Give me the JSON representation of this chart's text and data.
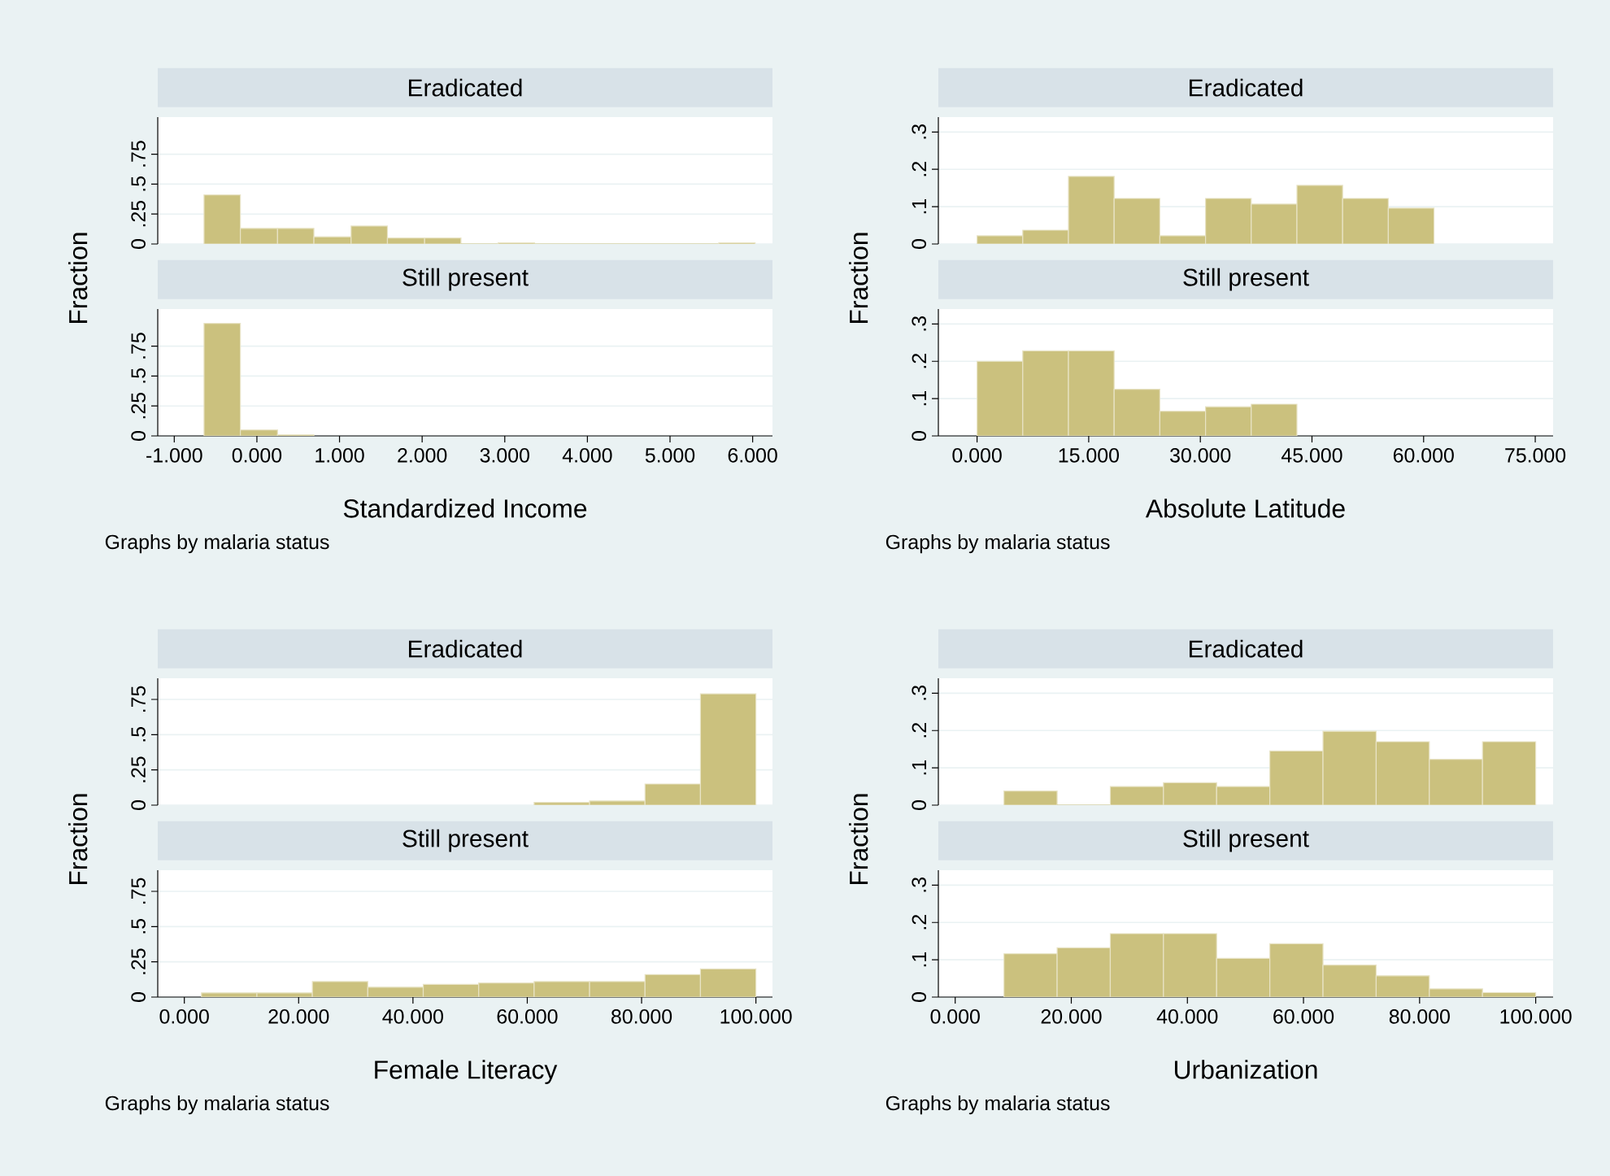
{
  "chart_data": [
    {
      "type": "histogram",
      "title": "Eradicated",
      "ylabel": "Fraction",
      "tick_labels": "y",
      "grid": "y",
      "color": "#cbc17e",
      "bins": [
        -0.64,
        -0.2,
        0.25,
        0.69,
        1.14,
        1.58,
        2.03,
        2.47,
        2.92,
        3.36,
        5.59,
        6.03
      ],
      "values": [
        0.41,
        0.13,
        0.13,
        0.06,
        0.15,
        0.05,
        0.05,
        0,
        0.01,
        0,
        0.01
      ],
      "xlim": [
        -1.2,
        6.24
      ],
      "ylim": [
        0,
        1.06
      ],
      "yticks": [
        0,
        {
          "value": 0.25,
          "label": ".25"
        },
        {
          "value": 0.5,
          "label": ".5"
        },
        {
          "value": 0.75,
          "label": ".75"
        }
      ]
    },
    {
      "type": "histogram",
      "title": "Still present",
      "xlabel": "Standardized Income",
      "grid": "y",
      "color": "#cbc17e",
      "annotations": [
        "Graphs by malaria status"
      ],
      "bins": [
        -0.64,
        -0.2,
        0.25,
        0.69
      ],
      "values": [
        0.94,
        0.05,
        0.01
      ],
      "xlim": [
        -1.2,
        6.24
      ],
      "ylim": [
        0,
        1.06
      ],
      "xticks": [
        {
          "value": -1,
          "label": "-1.000"
        },
        {
          "value": 0,
          "label": "0.000"
        },
        {
          "value": 1,
          "label": "1.000"
        },
        {
          "value": 2,
          "label": "2.000"
        },
        {
          "value": 3,
          "label": "3.000"
        },
        {
          "value": 4,
          "label": "4.000"
        },
        {
          "value": 5,
          "label": "5.000"
        },
        {
          "value": 6,
          "label": "6.000"
        }
      ],
      "yticks": [
        0,
        {
          "value": 0.25,
          "label": ".25"
        },
        {
          "value": 0.5,
          "label": ".5"
        },
        {
          "value": 0.75,
          "label": ".75"
        }
      ]
    },
    {
      "type": "histogram",
      "title": "Eradicated",
      "ylabel": "Fraction",
      "tick_labels": "y",
      "grid": "y",
      "color": "#cbc17e",
      "bins": [
        0,
        6.14,
        12.28,
        18.42,
        24.56,
        30.7,
        36.84,
        42.98,
        49.12,
        55.26,
        61.4
      ],
      "values": [
        0.022,
        0.037,
        0.181,
        0.122,
        0.022,
        0.122,
        0.107,
        0.157,
        0.122,
        0.096
      ],
      "xlim": [
        -5.2,
        77.4
      ],
      "ylim": [
        0,
        0.34
      ],
      "yticks": [
        0,
        {
          "value": 0.1,
          "label": ".1"
        },
        {
          "value": 0.2,
          "label": ".2"
        },
        {
          "value": 0.3,
          "label": ".3"
        }
      ]
    },
    {
      "type": "histogram",
      "title": "Still present",
      "xlabel": "Absolute Latitude",
      "grid": "y",
      "color": "#cbc17e",
      "annotations": [
        "Graphs by malaria status"
      ],
      "bins": [
        0,
        6.14,
        12.28,
        18.42,
        24.56,
        30.7,
        36.84,
        42.98
      ],
      "values": [
        0.2,
        0.228,
        0.228,
        0.125,
        0.066,
        0.078,
        0.085
      ],
      "xlim": [
        -5.2,
        77.4
      ],
      "ylim": [
        0,
        0.34
      ],
      "xticks": [
        {
          "value": 0,
          "label": "0.000"
        },
        {
          "value": 15,
          "label": "15.000"
        },
        {
          "value": 30,
          "label": "30.000"
        },
        {
          "value": 45,
          "label": "45.000"
        },
        {
          "value": 60,
          "label": "60.000"
        },
        {
          "value": 75,
          "label": "75.000"
        }
      ],
      "yticks": [
        0,
        {
          "value": 0.1,
          "label": ".1"
        },
        {
          "value": 0.2,
          "label": ".2"
        },
        {
          "value": 0.3,
          "label": ".3"
        }
      ]
    },
    {
      "type": "histogram",
      "title": "Eradicated",
      "ylabel": "Fraction",
      "tick_labels": "y",
      "grid": "y",
      "color": "#cbc17e",
      "bins": [
        61.2,
        70.9,
        80.6,
        90.3,
        100
      ],
      "values": [
        0.02,
        0.03,
        0.15,
        0.79
      ],
      "xlim": [
        -4.65,
        102.9
      ],
      "ylim": [
        0,
        0.9
      ],
      "yticks": [
        0,
        {
          "value": 0.25,
          "label": ".25"
        },
        {
          "value": 0.5,
          "label": ".5"
        },
        {
          "value": 0.75,
          "label": ".75"
        }
      ]
    },
    {
      "type": "histogram",
      "title": "Still present",
      "xlabel": "Female Literacy",
      "grid": "y",
      "color": "#cbc17e",
      "annotations": [
        "Graphs by malaria status"
      ],
      "bins": [
        3,
        12.7,
        22.4,
        32.1,
        41.8,
        51.5,
        61.2,
        70.9,
        80.6,
        90.3,
        100
      ],
      "values": [
        0.03,
        0.03,
        0.11,
        0.07,
        0.09,
        0.1,
        0.11,
        0.11,
        0.16,
        0.2
      ],
      "xlim": [
        -4.65,
        102.9
      ],
      "ylim": [
        0,
        0.9
      ],
      "xticks": [
        {
          "value": 0,
          "label": "0.000"
        },
        {
          "value": 20,
          "label": "20.000"
        },
        {
          "value": 40,
          "label": "40.000"
        },
        {
          "value": 60,
          "label": "60.000"
        },
        {
          "value": 80,
          "label": "80.000"
        },
        {
          "value": 100,
          "label": "100.000"
        }
      ],
      "yticks": [
        0,
        {
          "value": 0.25,
          "label": ".25"
        },
        {
          "value": 0.5,
          "label": ".5"
        },
        {
          "value": 0.75,
          "label": ".75"
        }
      ]
    },
    {
      "type": "histogram",
      "title": "Eradicated",
      "ylabel": "Fraction",
      "tick_labels": "y",
      "grid": "y",
      "color": "#cbc17e",
      "bins": [
        8.4,
        17.56,
        26.72,
        35.88,
        45.04,
        54.2,
        63.36,
        72.52,
        81.68,
        90.84,
        100
      ],
      "values": [
        0.038,
        0,
        0.05,
        0.06,
        0.05,
        0.145,
        0.198,
        0.17,
        0.123,
        0.17
      ],
      "xlim": [
        -2.9,
        103
      ],
      "ylim": [
        0,
        0.34
      ],
      "yticks": [
        0,
        {
          "value": 0.1,
          "label": ".1"
        },
        {
          "value": 0.2,
          "label": ".2"
        },
        {
          "value": 0.3,
          "label": ".3"
        }
      ]
    },
    {
      "type": "histogram",
      "title": "Still present",
      "xlabel": "Urbanization",
      "grid": "y",
      "color": "#cbc17e",
      "annotations": [
        "Graphs by malaria status"
      ],
      "bins": [
        8.4,
        17.56,
        26.72,
        35.88,
        45.04,
        54.2,
        63.36,
        72.52,
        81.68,
        90.84,
        100
      ],
      "values": [
        0.116,
        0.132,
        0.17,
        0.17,
        0.104,
        0.143,
        0.086,
        0.057,
        0.022,
        0.012
      ],
      "xlim": [
        -2.9,
        103
      ],
      "ylim": [
        0,
        0.34
      ],
      "xticks": [
        {
          "value": 0,
          "label": "0.000"
        },
        {
          "value": 20,
          "label": "20.000"
        },
        {
          "value": 40,
          "label": "40.000"
        },
        {
          "value": 60,
          "label": "60.000"
        },
        {
          "value": 80,
          "label": "80.000"
        },
        {
          "value": 100,
          "label": "100.000"
        }
      ],
      "yticks": [
        0,
        {
          "value": 0.1,
          "label": ".1"
        },
        {
          "value": 0.2,
          "label": ".2"
        },
        {
          "value": 0.3,
          "label": ".3"
        }
      ]
    }
  ]
}
